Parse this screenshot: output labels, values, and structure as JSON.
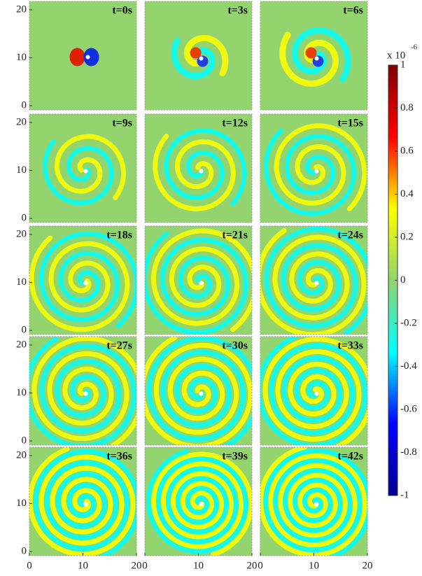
{
  "chart_data": {
    "type": "heatmap-grid",
    "panels": [
      {
        "label": "t=0s"
      },
      {
        "label": "t=3s"
      },
      {
        "label": "t=6s"
      },
      {
        "label": "t=9s"
      },
      {
        "label": "t=12s"
      },
      {
        "label": "t=15s"
      },
      {
        "label": "t=18s"
      },
      {
        "label": "t=21s"
      },
      {
        "label": "t=24s"
      },
      {
        "label": "t=27s"
      },
      {
        "label": "t=30s"
      },
      {
        "label": "t=33s"
      },
      {
        "label": "t=36s"
      },
      {
        "label": "t=39s"
      },
      {
        "label": "t=42s"
      }
    ],
    "columns": 3,
    "xlim": [
      0,
      20
    ],
    "xticks": [
      0,
      10,
      20
    ],
    "ylim": [
      0,
      20
    ],
    "yticks": [
      0,
      10,
      20
    ],
    "colorbar": {
      "lim": [
        -1,
        1
      ],
      "ticks": [
        1,
        0.8,
        0.6,
        0.4,
        0.2,
        0,
        -0.2,
        -0.4,
        -0.6,
        -0.8,
        -1
      ],
      "scale_label": "x 10",
      "scale_exponent": "-6",
      "colors": [
        "#00008f",
        "#0000ff",
        "#00ffff",
        "#93d46e",
        "#ffff00",
        "#ff0000",
        "#800000"
      ]
    }
  }
}
